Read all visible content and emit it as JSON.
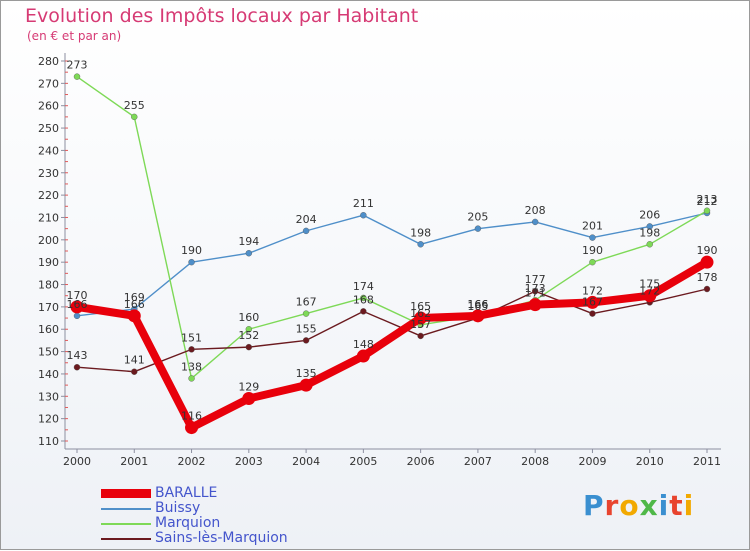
{
  "title": "Evolution des Impôts locaux par Habitant",
  "subtitle": "(en € et par an)",
  "logo_text": "Proxiti",
  "chart_data": {
    "type": "line",
    "title": "Evolution des Impôts locaux par Habitant",
    "subtitle": "(en € et par an)",
    "categories": [
      "2000",
      "2001",
      "2002",
      "2003",
      "2004",
      "2005",
      "2006",
      "2007",
      "2008",
      "2009",
      "2010",
      "2011"
    ],
    "ylim": [
      110,
      280
    ],
    "yticks": [
      110,
      120,
      130,
      140,
      150,
      160,
      170,
      180,
      190,
      200,
      210,
      220,
      230,
      240,
      250,
      260,
      270,
      280
    ],
    "grid": false,
    "legend_position": "bottom-left",
    "series": [
      {
        "name": "BARALLE",
        "color": "#e8000b",
        "values": [
          170,
          166,
          116,
          129,
          135,
          148,
          165,
          166,
          171,
          172,
          175,
          190
        ]
      },
      {
        "name": "Buissy",
        "color": "#4f8fc9",
        "values": [
          166,
          169,
          190,
          194,
          204,
          211,
          198,
          205,
          208,
          201,
          206,
          212
        ]
      },
      {
        "name": "Marquion",
        "color": "#7ed957",
        "values": [
          273,
          255,
          138,
          160,
          167,
          174,
          162,
          166,
          173,
          190,
          198,
          213
        ]
      },
      {
        "name": "Sains-lès-Marquion",
        "color": "#6b1a1f",
        "values": [
          143,
          141,
          151,
          152,
          155,
          168,
          157,
          165,
          177,
          167,
          172,
          178
        ]
      }
    ]
  }
}
